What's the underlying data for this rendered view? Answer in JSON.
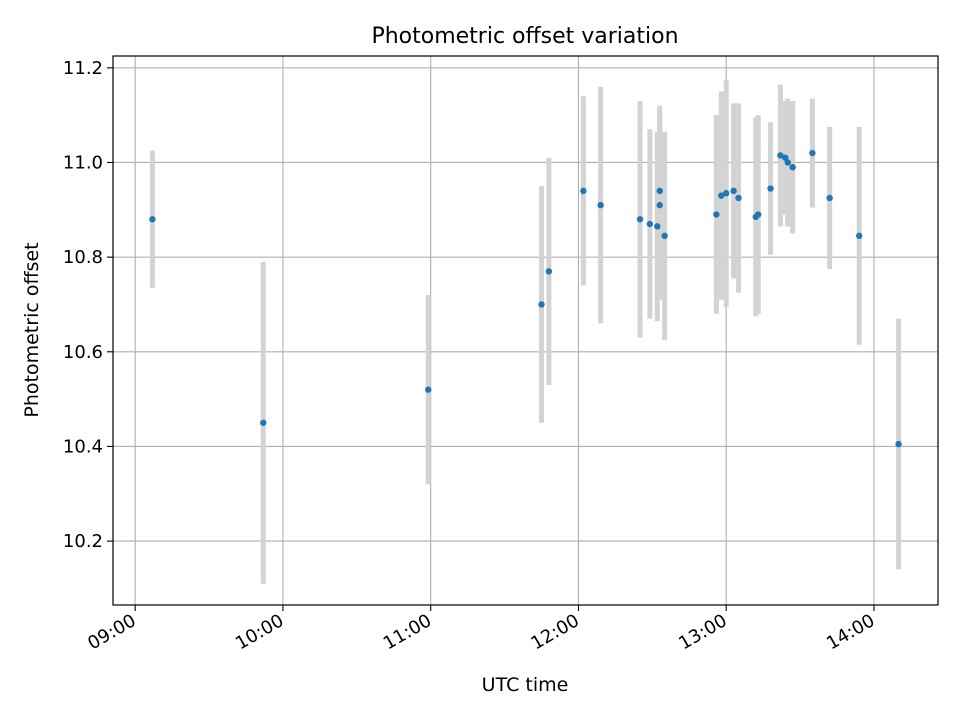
{
  "chart_data": {
    "type": "scatter",
    "title": "Photometric offset variation",
    "xlabel": "UTC time",
    "ylabel": "Photometric offset",
    "x_unit": "UTC time (HH:MM)",
    "xlim": [
      "08:51",
      "14:26"
    ],
    "ylim": [
      10.065,
      11.225
    ],
    "xticks": [
      "09:00",
      "10:00",
      "11:00",
      "12:00",
      "13:00",
      "14:00"
    ],
    "yticks": [
      "10.2",
      "10.4",
      "10.6",
      "10.8",
      "11.0",
      "11.2"
    ],
    "grid": true,
    "colors": {
      "marker": "#1f77b4",
      "errorbar": "#d3d3d3",
      "grid": "#b0b0b0"
    },
    "series": [
      {
        "points": [
          {
            "t": "09:07",
            "y": 10.88,
            "err": 0.145
          },
          {
            "t": "09:52",
            "y": 10.45,
            "err": 0.34
          },
          {
            "t": "10:59",
            "y": 10.52,
            "err": 0.2
          },
          {
            "t": "11:45",
            "y": 10.7,
            "err": 0.25
          },
          {
            "t": "11:48",
            "y": 10.77,
            "err": 0.24
          },
          {
            "t": "12:02",
            "y": 10.94,
            "err": 0.2
          },
          {
            "t": "12:09",
            "y": 10.91,
            "err": 0.25
          },
          {
            "t": "12:25",
            "y": 10.88,
            "err": 0.25
          },
          {
            "t": "12:29",
            "y": 10.87,
            "err": 0.2
          },
          {
            "t": "12:32",
            "y": 10.865,
            "err": 0.2
          },
          {
            "t": "12:33",
            "y": 10.94,
            "err": 0.18
          },
          {
            "t": "12:33",
            "y": 10.91,
            "err": 0.2
          },
          {
            "t": "12:35",
            "y": 10.845,
            "err": 0.22
          },
          {
            "t": "12:56",
            "y": 10.89,
            "err": 0.21
          },
          {
            "t": "12:58",
            "y": 10.93,
            "err": 0.22
          },
          {
            "t": "13:00",
            "y": 10.935,
            "err": 0.24
          },
          {
            "t": "13:03",
            "y": 10.94,
            "err": 0.185
          },
          {
            "t": "13:05",
            "y": 10.925,
            "err": 0.2
          },
          {
            "t": "13:12",
            "y": 10.885,
            "err": 0.21
          },
          {
            "t": "13:13",
            "y": 10.89,
            "err": 0.21
          },
          {
            "t": "13:18",
            "y": 10.945,
            "err": 0.14
          },
          {
            "t": "13:22",
            "y": 11.015,
            "err": 0.15
          },
          {
            "t": "13:24",
            "y": 11.01,
            "err": 0.12
          },
          {
            "t": "13:25",
            "y": 11.0,
            "err": 0.135
          },
          {
            "t": "13:27",
            "y": 10.99,
            "err": 0.14
          },
          {
            "t": "13:35",
            "y": 11.02,
            "err": 0.115
          },
          {
            "t": "13:42",
            "y": 10.925,
            "err": 0.15
          },
          {
            "t": "13:54",
            "y": 10.845,
            "err": 0.23
          },
          {
            "t": "14:10",
            "y": 10.405,
            "err": 0.265
          }
        ]
      }
    ]
  }
}
